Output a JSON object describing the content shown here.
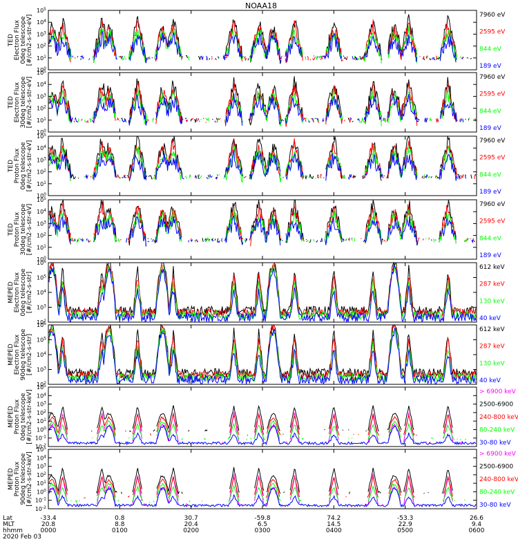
{
  "title": "NOAA18",
  "colors": {
    "black": "#000000",
    "red": "#ff0000",
    "green": "#00ff00",
    "blue": "#0000ff",
    "magenta": "#ff00ff"
  },
  "panels": [
    {
      "ylabel": [
        "TED",
        "Electron Flux",
        "0deg telescope",
        "[#/cm2-s-str-eV]"
      ],
      "log_min": 0,
      "log_max": 5,
      "legend": [
        {
          "text": "7960 eV",
          "color": "black"
        },
        {
          "text": "2595 eV",
          "color": "red"
        },
        {
          "text": "844 eV",
          "color": "green"
        },
        {
          "text": "189 eV",
          "color": "blue"
        }
      ]
    },
    {
      "ylabel": [
        "TED",
        "Electron Flux",
        "30deg telescope",
        "[#/cm2-s-str-eV]"
      ],
      "log_min": 0,
      "log_max": 5,
      "legend": [
        {
          "text": "7960 eV",
          "color": "black"
        },
        {
          "text": "2595 eV",
          "color": "red"
        },
        {
          "text": "844 eV",
          "color": "green"
        },
        {
          "text": "189 eV",
          "color": "blue"
        }
      ]
    },
    {
      "ylabel": [
        "TED",
        "Proton Flux",
        "0deg telescope",
        "[#/cm2-s-str-eV]"
      ],
      "log_min": 0,
      "log_max": 5,
      "legend": [
        {
          "text": "7960 eV",
          "color": "black"
        },
        {
          "text": "2595 eV",
          "color": "red"
        },
        {
          "text": "844 eV",
          "color": "green"
        },
        {
          "text": "189 eV",
          "color": "blue"
        }
      ]
    },
    {
      "ylabel": [
        "TED",
        "Proton Flux",
        "30deg telescope",
        "[#/cm2-s-str-eV]"
      ],
      "log_min": 0,
      "log_max": 5,
      "legend": [
        {
          "text": "7960 eV",
          "color": "black"
        },
        {
          "text": "2595 eV",
          "color": "red"
        },
        {
          "text": "844 eV",
          "color": "green"
        },
        {
          "text": "189 eV",
          "color": "blue"
        }
      ]
    },
    {
      "ylabel": [
        "MEPED",
        "Electron Flux",
        "0deg telescope",
        "[#/cm2-s-str]"
      ],
      "log_min": 2,
      "log_max": 6,
      "legend": [
        {
          "text": "612 keV",
          "color": "black"
        },
        {
          "text": "287 keV",
          "color": "red"
        },
        {
          "text": "130 keV",
          "color": "green"
        },
        {
          "text": "40 keV",
          "color": "blue"
        }
      ]
    },
    {
      "ylabel": [
        "MEPED",
        "Electron Flux",
        "90deg telescope",
        "[#/cm2-s-str]"
      ],
      "log_min": 2,
      "log_max": 6,
      "legend": [
        {
          "text": "612 keV",
          "color": "black"
        },
        {
          "text": "287 keV",
          "color": "red"
        },
        {
          "text": "130 keV",
          "color": "green"
        },
        {
          "text": "40 keV",
          "color": "blue"
        }
      ]
    },
    {
      "ylabel": [
        "MEPED",
        "Proton Flux",
        "0deg telescope",
        "[#/cm2-s-str-keV]"
      ],
      "log_min": -2,
      "log_max": 5,
      "legend": [
        {
          "text": "> 6900 keV",
          "color": "magenta"
        },
        {
          "text": "2500-6900",
          "color": "black"
        },
        {
          "text": "240-800 keV",
          "color": "red"
        },
        {
          "text": "80-240 keV",
          "color": "green"
        },
        {
          "text": "30-80 keV",
          "color": "blue"
        }
      ]
    },
    {
      "ylabel": [
        "MEPED",
        "Proton Flux",
        "90deg telescope",
        "[#/cm2-s-str-keV]"
      ],
      "log_min": -2,
      "log_max": 5,
      "legend": [
        {
          "text": "> 6900 keV",
          "color": "magenta"
        },
        {
          "text": "2500-6900",
          "color": "black"
        },
        {
          "text": "240-800 keV",
          "color": "red"
        },
        {
          "text": "80-240 keV",
          "color": "green"
        },
        {
          "text": "30-80 keV",
          "color": "blue"
        }
      ]
    }
  ],
  "xaxis": {
    "row_labels": [
      "Lat",
      "MLT",
      "hhmm",
      "2020 Feb 03"
    ],
    "ticks": [
      {
        "lat": "-33.4",
        "mlt": "20.8",
        "hhmm": "0000"
      },
      {
        "lat": "0.8",
        "mlt": "8.8",
        "hhmm": "0100"
      },
      {
        "lat": "30.7",
        "mlt": "20.4",
        "hhmm": "0200"
      },
      {
        "lat": "-59.8",
        "mlt": "6.5",
        "hhmm": "0300"
      },
      {
        "lat": "74.2",
        "mlt": "14.5",
        "hhmm": "0400"
      },
      {
        "lat": "-53.3",
        "mlt": "22.9",
        "hhmm": "0500"
      },
      {
        "lat": "26.6",
        "mlt": "9.4",
        "hhmm": "0600"
      }
    ]
  },
  "chart_data": {
    "type": "line",
    "title": "NOAA18",
    "xlabel": "Lat / MLT / hhmm (UT), 2020 Feb 03",
    "xlim_hours": [
      0,
      6
    ],
    "yscale": "log",
    "passes_hours": {
      "polar_peaks": [
        0.2,
        0.75,
        1.25,
        1.75,
        2.6,
        2.95,
        3.45,
        4.0,
        4.55,
        5.05,
        5.6
      ],
      "saa_bumps": [
        0.05,
        0.85,
        1.6,
        3.15,
        4.85
      ]
    }
  }
}
